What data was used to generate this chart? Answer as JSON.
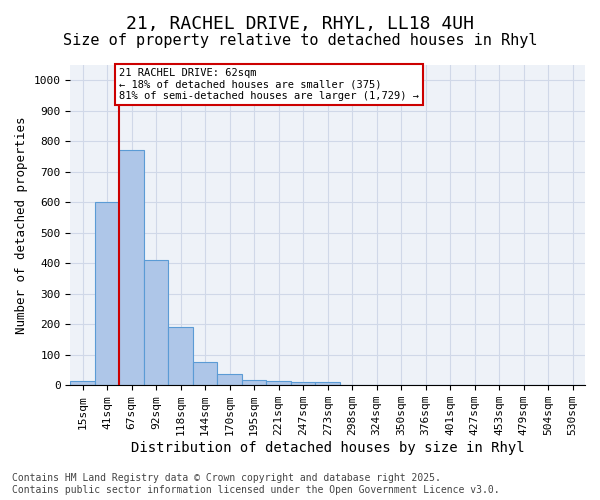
{
  "title": "21, RACHEL DRIVE, RHYL, LL18 4UH",
  "subtitle": "Size of property relative to detached houses in Rhyl",
  "xlabel": "Distribution of detached houses by size in Rhyl",
  "ylabel": "Number of detached properties",
  "bar_values": [
    15,
    600,
    770,
    410,
    190,
    75,
    37,
    17,
    15,
    11,
    12,
    0,
    0,
    0,
    0,
    0,
    0,
    0,
    0,
    0,
    0
  ],
  "bar_labels": [
    "15sqm",
    "41sqm",
    "67sqm",
    "92sqm",
    "118sqm",
    "144sqm",
    "170sqm",
    "195sqm",
    "221sqm",
    "247sqm",
    "273sqm",
    "298sqm",
    "324sqm",
    "350sqm",
    "376sqm",
    "401sqm",
    "427sqm",
    "453sqm",
    "479sqm",
    "504sqm",
    "530sqm"
  ],
  "bar_color": "#aec6e8",
  "bar_edge_color": "#5b9bd5",
  "grid_color": "#d0d8e8",
  "background_color": "#eef2f8",
  "vline_color": "#cc0000",
  "vline_x": 1.5,
  "annotation_text": "21 RACHEL DRIVE: 62sqm\n← 18% of detached houses are smaller (375)\n81% of semi-detached houses are larger (1,729) →",
  "ylim": [
    0,
    1050
  ],
  "yticks": [
    0,
    100,
    200,
    300,
    400,
    500,
    600,
    700,
    800,
    900,
    1000
  ],
  "footer_text": "Contains HM Land Registry data © Crown copyright and database right 2025.\nContains public sector information licensed under the Open Government Licence v3.0.",
  "title_fontsize": 13,
  "subtitle_fontsize": 11,
  "xlabel_fontsize": 10,
  "ylabel_fontsize": 9,
  "tick_fontsize": 8,
  "footer_fontsize": 7
}
